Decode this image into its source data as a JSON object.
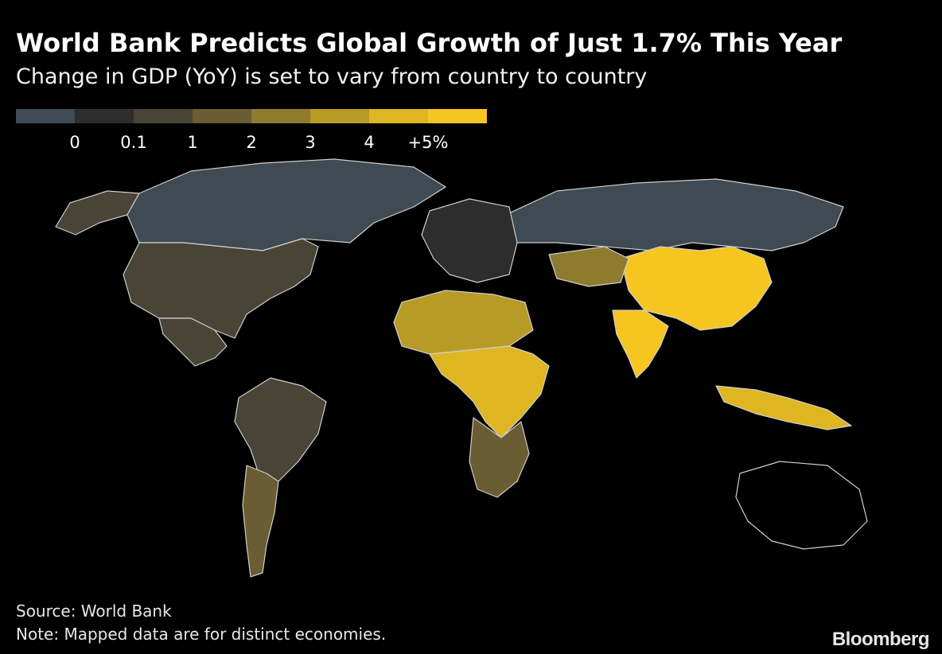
{
  "header": {
    "title": "World Bank Predicts Global Growth of Just 1.7% This Year",
    "subtitle": "Change in GDP (YoY) is set to vary from country to country"
  },
  "legend": {
    "colors": [
      "#3f4a52",
      "#2d2d2d",
      "#4a4436",
      "#6b5d33",
      "#8e7b2e",
      "#b89a26",
      "#ddb622",
      "#f7c51f"
    ],
    "labels": [
      "0",
      "0.1",
      "1",
      "2",
      "3",
      "4",
      "+5%"
    ]
  },
  "map_regions": {
    "no_data_color": "#000000",
    "border_color": "#cfcfcf",
    "countries": [
      {
        "name": "Alaska",
        "bin": 2
      },
      {
        "name": "Canada",
        "bin": 0
      },
      {
        "name": "United States",
        "bin": 2
      },
      {
        "name": "Mexico",
        "bin": 2
      },
      {
        "name": "Brazil",
        "bin": 2
      },
      {
        "name": "Argentina",
        "bin": 3
      },
      {
        "name": "Russia",
        "bin": 0
      },
      {
        "name": "China",
        "bin": 7
      },
      {
        "name": "India",
        "bin": 7
      },
      {
        "name": "Kazakhstan",
        "bin": 4
      },
      {
        "name": "Africa North",
        "bin": 5
      },
      {
        "name": "Africa Central",
        "bin": 6
      },
      {
        "name": "Africa South",
        "bin": 3
      },
      {
        "name": "Indonesia",
        "bin": 6
      },
      {
        "name": "Australia",
        "bin": -1
      },
      {
        "name": "Europe",
        "bin": 1
      }
    ]
  },
  "footer": {
    "source": "Source: World Bank",
    "note": "Note: Mapped data are for distinct economies.",
    "brand": "Bloomberg"
  }
}
